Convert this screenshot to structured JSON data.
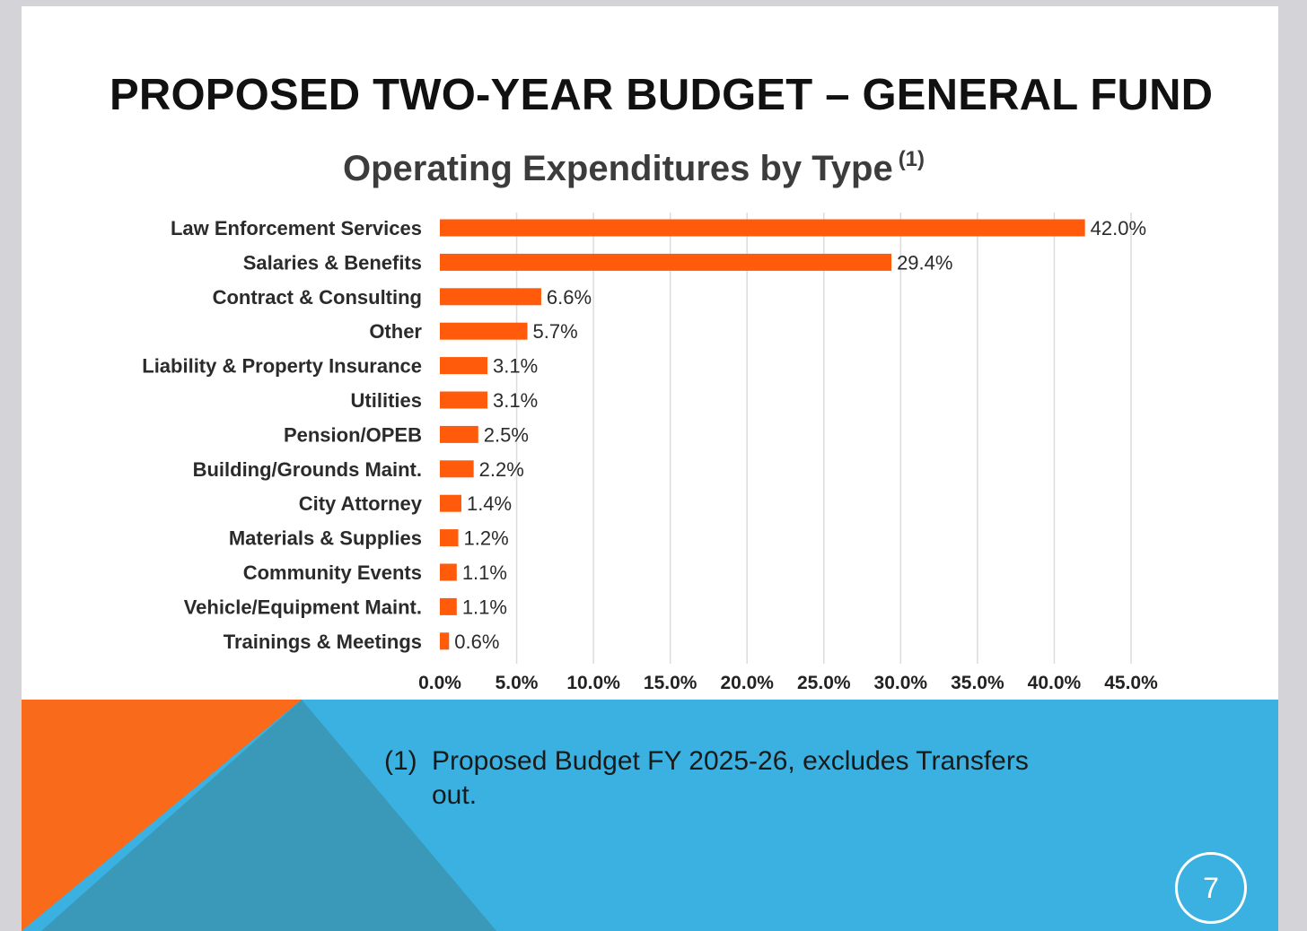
{
  "slide": {
    "title": "PROPOSED TWO-YEAR BUDGET – GENERAL FUND",
    "page_number": "7",
    "footnote_marker": "(1)",
    "footnote_text": "Proposed Budget FY 2025-26, excludes Transfers out."
  },
  "chart_data": {
    "type": "bar",
    "orientation": "horizontal",
    "title": "Operating Expenditures by Type",
    "title_superscript": "(1)",
    "categories": [
      "Law Enforcement Services",
      "Salaries & Benefits",
      "Contract & Consulting",
      "Other",
      "Liability & Property Insurance",
      "Utilities",
      "Pension/OPEB",
      "Building/Grounds Maint.",
      "City Attorney",
      "Materials & Supplies",
      "Community Events",
      "Vehicle/Equipment Maint.",
      "Trainings & Meetings"
    ],
    "values": [
      42.0,
      29.4,
      6.6,
      5.7,
      3.1,
      3.1,
      2.5,
      2.2,
      1.4,
      1.2,
      1.1,
      1.1,
      0.6
    ],
    "data_labels": [
      "42.0%",
      "29.4%",
      "6.6%",
      "5.7%",
      "3.1%",
      "3.1%",
      "2.5%",
      "2.2%",
      "1.4%",
      "1.2%",
      "1.1%",
      "1.1%",
      "0.6%"
    ],
    "xlim": [
      0,
      45
    ],
    "x_ticks": [
      "0.0%",
      "5.0%",
      "10.0%",
      "15.0%",
      "20.0%",
      "25.0%",
      "30.0%",
      "35.0%",
      "40.0%",
      "45.0%"
    ],
    "xlabel": "",
    "ylabel": "",
    "grid": "vertical",
    "bar_color": "#ff5b0a"
  },
  "colors": {
    "footer_blue": "#3ab1e0",
    "footer_teal": "#3a98b8",
    "footer_orange": "#f96a1a"
  }
}
